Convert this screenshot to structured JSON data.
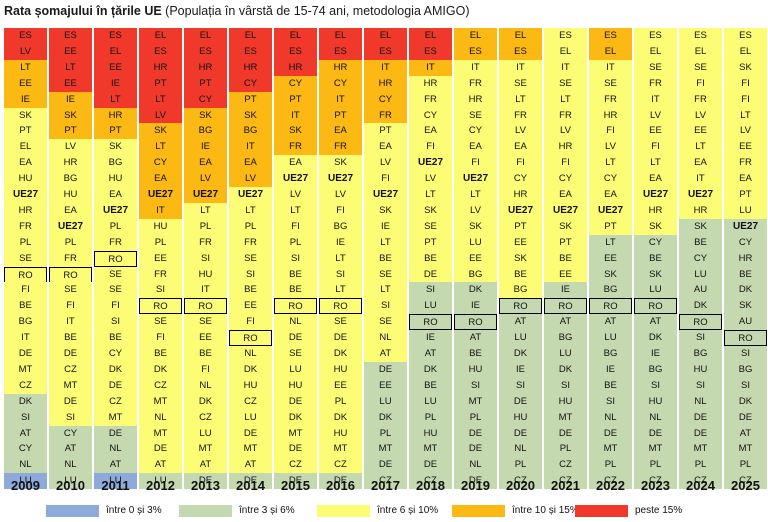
{
  "title": {
    "main": "Rata șomajului în țările UE",
    "sub": "(Populația în vârstă de 15-74 ani, metodologia AMIGO)"
  },
  "colors": {
    "c0_3": "#8eaadb",
    "c3_6": "#c5d9b1",
    "c6_10": "#fdfd75",
    "c10_15": "#fcb813",
    "c15": "#f0392a"
  },
  "chart_data": {
    "type": "table",
    "highlight_country": "RO",
    "bold_labels": [
      "UE27"
    ],
    "legend": [
      {
        "label": "între 0 și 3%",
        "color": "#8eaadb"
      },
      {
        "label": "între 3 și 6%",
        "color": "#c5d9b1"
      },
      {
        "label": "între 6 și 10%",
        "color": "#fdfd75"
      },
      {
        "label": "între 10 și 15%",
        "color": "#fcb813"
      },
      {
        "label": "peste 15%",
        "color": "#f0392a"
      }
    ],
    "years": [
      {
        "year": "2009",
        "countries": [
          "ES",
          "LV",
          "LT",
          "EE",
          "IE",
          "SK",
          "PT",
          "EL",
          "EA",
          "HU",
          "UE27",
          "HR",
          "FR",
          "PL",
          "SE",
          "RO",
          "FI",
          "BE",
          "BG",
          "IT",
          "DE",
          "MT",
          "CZ",
          "DK",
          "SI",
          "AT",
          "CY",
          "NL",
          "LU"
        ],
        "bands": [
          2,
          3,
          18,
          5,
          3
        ]
      },
      {
        "year": "2010",
        "countries": [
          "ES",
          "EE",
          "LT",
          "EE",
          "IE",
          "SK",
          "PT",
          "LV",
          "HR",
          "BG",
          "HU",
          "EA",
          "UE27",
          "PL",
          "FR",
          "RO",
          "SE",
          "FI",
          "IT",
          "BE",
          "DE",
          "CZ",
          "MT",
          "DE",
          "SI",
          "CY",
          "AT",
          "NL",
          "LU"
        ],
        "bands": [
          4,
          3,
          18,
          4,
          0
        ]
      },
      {
        "year": "2011",
        "countries": [
          "ES",
          "EL",
          "EE",
          "IE",
          "LT",
          "HR",
          "PT",
          "SK",
          "BG",
          "HU",
          "EA",
          "UE27",
          "PL",
          "FR",
          "RO",
          "SE",
          "SE",
          "FI",
          "SI",
          "BE",
          "CY",
          "DK",
          "DE",
          "CZ",
          "MT",
          "DE",
          "NL",
          "AT",
          "LU"
        ],
        "bands": [
          5,
          2,
          18,
          3,
          1
        ]
      },
      {
        "year": "2012",
        "countries": [
          "EL",
          "ES",
          "HR",
          "PT",
          "LT",
          "LV",
          "SK",
          "LT",
          "CY",
          "EA",
          "UE27",
          "IT",
          "HU",
          "PL",
          "EE",
          "FR",
          "SI",
          "RO",
          "SE",
          "FI",
          "BE",
          "DK",
          "CZ",
          "MT",
          "NL",
          "MT",
          "DE",
          "AT",
          "LU"
        ],
        "bands": [
          6,
          6,
          16,
          1,
          0
        ]
      },
      {
        "year": "2013",
        "countries": [
          "EL",
          "ES",
          "HR",
          "PT",
          "CY",
          "SK",
          "BG",
          "IE",
          "EA",
          "LV",
          "UE27",
          "LT",
          "PL",
          "FR",
          "SI",
          "HU",
          "IT",
          "RO",
          "SE",
          "EE",
          "BE",
          "FI",
          "NL",
          "DK",
          "CZ",
          "LU",
          "MT",
          "AT",
          "DE"
        ],
        "bands": [
          5,
          6,
          17,
          1,
          0
        ]
      },
      {
        "year": "2014",
        "countries": [
          "EL",
          "ES",
          "HR",
          "CY",
          "PT",
          "SK",
          "BG",
          "IT",
          "EA",
          "LV",
          "UE27",
          "LT",
          "PL",
          "FR",
          "SE",
          "SI",
          "BE",
          "EE",
          "FI",
          "RO",
          "NL",
          "DK",
          "HU",
          "CZ",
          "LU",
          "DE",
          "MT",
          "AT",
          "DE"
        ],
        "bands": [
          4,
          6,
          18,
          1,
          0
        ]
      },
      {
        "year": "2015",
        "countries": [
          "EL",
          "ES",
          "HR",
          "CY",
          "PT",
          "IT",
          "SK",
          "FR",
          "EA",
          "UE27",
          "LV",
          "LT",
          "FI",
          "PL",
          "SI",
          "BE",
          "BE",
          "RO",
          "NL",
          "DE",
          "SE",
          "LU",
          "HU",
          "DE",
          "DK",
          "MT",
          "DE",
          "CZ",
          "DE"
        ],
        "bands": [
          3,
          5,
          20,
          1,
          0
        ]
      },
      {
        "year": "2016",
        "countries": [
          "EL",
          "ES",
          "HR",
          "CY",
          "IT",
          "PT",
          "EA",
          "FR",
          "SK",
          "UE27",
          "LV",
          "FI",
          "BG",
          "IE",
          "LT",
          "SI",
          "LT",
          "RO",
          "SE",
          "DE",
          "DK",
          "HU",
          "EE",
          "PL",
          "DK",
          "HU",
          "MT",
          "CZ",
          "DE"
        ],
        "bands": [
          2,
          6,
          20,
          1,
          0
        ]
      },
      {
        "year": "2017",
        "countries": [
          "EL",
          "ES",
          "IT",
          "HR",
          "CY",
          "FR",
          "PT",
          "EA",
          "LV",
          "FI",
          "UE27",
          "SK",
          "IE",
          "LT",
          "BE",
          "SE",
          "LT",
          "SI",
          "SE",
          "NL",
          "AT",
          "DE",
          "EE",
          "LU",
          "DK",
          "PL",
          "MT",
          "DE",
          "CZ"
        ],
        "bands": [
          2,
          4,
          15,
          8,
          0
        ]
      },
      {
        "year": "2018",
        "countries": [
          "EL",
          "ES",
          "IT",
          "HR",
          "FR",
          "CY",
          "EA",
          "FI",
          "UE27",
          "LV",
          "LT",
          "SK",
          "SE",
          "PT",
          "BE",
          "DE",
          "SI",
          "LU",
          "RO",
          "IE",
          "AT",
          "DK",
          "BE",
          "LU",
          "PL",
          "HU",
          "MT",
          "DE",
          "CZ"
        ],
        "bands": [
          2,
          1,
          13,
          13,
          0
        ]
      },
      {
        "year": "2019",
        "countries": [
          "EL",
          "ES",
          "IT",
          "FR",
          "HR",
          "SE",
          "CY",
          "EA",
          "FI",
          "UE27",
          "LT",
          "LV",
          "SK",
          "LU",
          "EE",
          "BG",
          "DK",
          "IE",
          "RO",
          "AT",
          "BE",
          "HU",
          "SI",
          "MT",
          "PL",
          "DE",
          "DE",
          "NL",
          "DE"
        ],
        "bands": [
          0,
          2,
          14,
          13,
          0
        ]
      },
      {
        "year": "2020",
        "countries": [
          "EL",
          "ES",
          "IT",
          "SE",
          "LT",
          "FR",
          "LV",
          "EA",
          "FI",
          "CY",
          "HR",
          "UE27",
          "PT",
          "EE",
          "SK",
          "BE",
          "BG",
          "RO",
          "AT",
          "LU",
          "DK",
          "IE",
          "SI",
          "DE",
          "HU",
          "DE",
          "NL",
          "PL",
          "CZ"
        ],
        "bands": [
          0,
          2,
          15,
          12,
          0
        ]
      },
      {
        "year": "2021",
        "countries": [
          "ES",
          "EL",
          "IT",
          "SE",
          "LT",
          "FR",
          "LV",
          "HR",
          "FI",
          "CY",
          "EA",
          "UE27",
          "SK",
          "PT",
          "BE",
          "EE",
          "IE",
          "RO",
          "AT",
          "BG",
          "LU",
          "DK",
          "SI",
          "HU",
          "MT",
          "DE",
          "PL",
          "CZ",
          "CZ"
        ],
        "bands": [
          0,
          0,
          16,
          13,
          0
        ]
      },
      {
        "year": "2022",
        "countries": [
          "ES",
          "EL",
          "IT",
          "SE",
          "FR",
          "HR",
          "FI",
          "LV",
          "LT",
          "CY",
          "EA",
          "UE27",
          "PT",
          "LT",
          "EE",
          "SK",
          "BG",
          "RO",
          "AT",
          "LU",
          "BG",
          "IE",
          "BE",
          "SI",
          "NL",
          "DE",
          "MT",
          "PL",
          "CZ"
        ],
        "bands": [
          0,
          2,
          11,
          16,
          0
        ]
      },
      {
        "year": "2023",
        "countries": [
          "ES",
          "EL",
          "SE",
          "FR",
          "IT",
          "LV",
          "EE",
          "FI",
          "LT",
          "EA",
          "UE27",
          "HR",
          "SK",
          "CY",
          "BE",
          "SK",
          "LU",
          "RO",
          "AT",
          "DK",
          "IE",
          "BG",
          "SI",
          "HU",
          "NL",
          "DE",
          "MT",
          "PL",
          "CZ"
        ],
        "bands": [
          0,
          0,
          13,
          16,
          0
        ]
      },
      {
        "year": "2024",
        "countries": [
          "ES",
          "EL",
          "SE",
          "FI",
          "FR",
          "LV",
          "EE",
          "LT",
          "EA",
          "IT",
          "UE27",
          "HR",
          "SK",
          "BE",
          "CY",
          "LU",
          "AU",
          "DK",
          "RO",
          "SI",
          "BG",
          "HU",
          "SI",
          "NL",
          "DE",
          "DE",
          "MT",
          "PL",
          "CZ"
        ],
        "bands": [
          0,
          0,
          12,
          17,
          0
        ]
      },
      {
        "year": "2025",
        "countries": [
          "ES",
          "EL",
          "SK",
          "FI",
          "FI",
          "LT",
          "LV",
          "EE",
          "FR",
          "EA",
          "PT",
          "LU",
          "UE27",
          "CY",
          "HR",
          "BE",
          "DK",
          "SK",
          "AU",
          "RO",
          "SI",
          "BG",
          "SI",
          "DK",
          "DE",
          "AT",
          "MT",
          "PL",
          "CZ"
        ],
        "bands": [
          0,
          0,
          12,
          17,
          0
        ]
      }
    ]
  }
}
